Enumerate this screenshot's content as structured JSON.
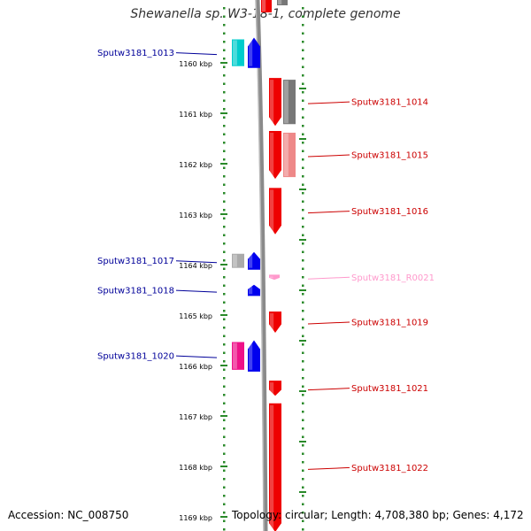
{
  "title": "Shewanella sp. W3-18-1, complete genome",
  "accession": "Accession: NC_008750",
  "topology": "Topology: circular; Length: 4,708,380 bp; Genes: 4,172",
  "ruler": {
    "ticks": [
      {
        "label": "1160 kbp",
        "kbp": 1160
      },
      {
        "label": "1161 kbp",
        "kbp": 1161
      },
      {
        "label": "1162 kbp",
        "kbp": 1162
      },
      {
        "label": "1163 kbp",
        "kbp": 1163
      },
      {
        "label": "1164 kbp",
        "kbp": 1164
      },
      {
        "label": "1165 kbp",
        "kbp": 1165
      },
      {
        "label": "1166 kbp",
        "kbp": 1166
      },
      {
        "label": "1167 kbp",
        "kbp": 1167
      },
      {
        "label": "1168 kbp",
        "kbp": 1168
      },
      {
        "label": "1169 kbp",
        "kbp": 1169
      }
    ]
  },
  "genes": [
    {
      "name": "Sputw3181_1013",
      "strand": "-",
      "start_kbp": 1159.5,
      "end_kbp": 1160.1,
      "color": "#0000ee",
      "label_color": "#000099",
      "homolog_color": "#00cccc"
    },
    {
      "name": "Sputw3181_1014",
      "strand": "+",
      "start_kbp": 1160.3,
      "end_kbp": 1161.25,
      "color": "#ee0000",
      "label_color": "#cc0000",
      "homolog_color": "#777777"
    },
    {
      "name": "Sputw3181_1015",
      "strand": "+",
      "start_kbp": 1161.35,
      "end_kbp": 1162.3,
      "color": "#ee0000",
      "label_color": "#cc0000",
      "homolog_color": "#ee8888"
    },
    {
      "name": "Sputw3181_1016",
      "strand": "+",
      "start_kbp": 1162.48,
      "end_kbp": 1163.4,
      "color": "#ee0000",
      "label_color": "#cc0000"
    },
    {
      "name": "Sputw3181_1017",
      "strand": "-",
      "start_kbp": 1163.75,
      "end_kbp": 1164.1,
      "color": "#0000ee",
      "label_color": "#000099",
      "homolog_color": "#aaaaaa"
    },
    {
      "name": "Sputw3181_R0021",
      "strand": "+",
      "start_kbp": 1164.2,
      "end_kbp": 1164.3,
      "color": "#ff99cc",
      "label_color": "#ff99cc"
    },
    {
      "name": "Sputw3181_1018",
      "strand": "-",
      "start_kbp": 1164.4,
      "end_kbp": 1164.62,
      "color": "#0000ee",
      "label_color": "#000099"
    },
    {
      "name": "Sputw3181_1019",
      "strand": "+",
      "start_kbp": 1164.93,
      "end_kbp": 1165.35,
      "color": "#ee0000",
      "label_color": "#cc0000"
    },
    {
      "name": "Sputw3181_1020",
      "strand": "-",
      "start_kbp": 1165.5,
      "end_kbp": 1166.12,
      "color": "#0000ee",
      "label_color": "#000099",
      "homolog_color": "#ee1188"
    },
    {
      "name": "Sputw3181_1021",
      "strand": "+",
      "start_kbp": 1166.3,
      "end_kbp": 1166.6,
      "color": "#ee0000",
      "label_color": "#cc0000"
    },
    {
      "name": "Sputw3181_1022",
      "strand": "+",
      "start_kbp": 1166.75,
      "end_kbp": 1169.3,
      "color": "#ee0000",
      "label_color": "#cc0000"
    }
  ]
}
